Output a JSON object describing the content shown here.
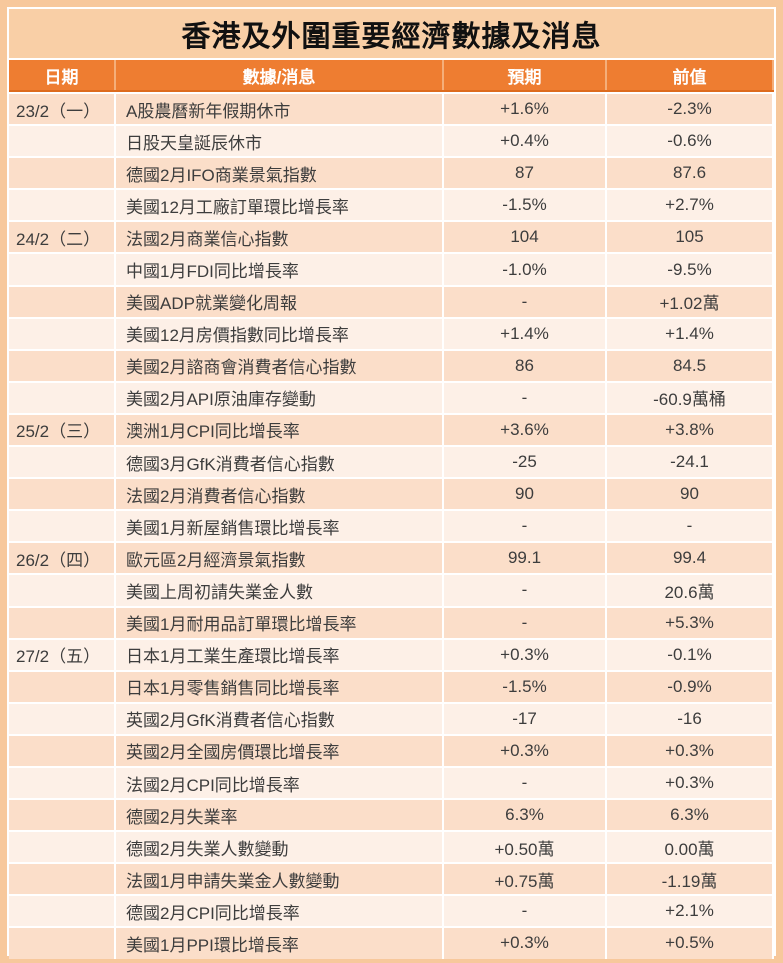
{
  "title": "香港及外圍重要經濟數據及消息",
  "colors": {
    "frame": "#F7C89C",
    "title_bg": "#F9CFA6",
    "header_bg": "#EE7D31",
    "header_gap": "#F5AE79",
    "header_line": "#DD6B1D",
    "row_dark": "#FBDEC9",
    "row_light": "#FDF0E7",
    "text": "#3D3D3D"
  },
  "chart_data": {
    "type": "table",
    "title": "香港及外圍重要經濟數據及消息",
    "columns": [
      {
        "key": "date",
        "label": "日期"
      },
      {
        "key": "item",
        "label": "數據/消息"
      },
      {
        "key": "expected",
        "label": "預期"
      },
      {
        "key": "previous",
        "label": "前值"
      }
    ],
    "rows": [
      {
        "date": "23/2（一）",
        "item": "A股農曆新年假期休市",
        "expected": "+1.6%",
        "previous": "-2.3%"
      },
      {
        "date": "",
        "item": "日股天皇誕辰休市",
        "expected": "+0.4%",
        "previous": "-0.6%"
      },
      {
        "date": "",
        "item": "德國2月IFO商業景氣指數",
        "expected": "87",
        "previous": "87.6"
      },
      {
        "date": "",
        "item": "美國12月工廠訂單環比增長率",
        "expected": "-1.5%",
        "previous": "+2.7%"
      },
      {
        "date": "24/2（二）",
        "item": "法國2月商業信心指數",
        "expected": "104",
        "previous": "105"
      },
      {
        "date": "",
        "item": "中國1月FDI同比增長率",
        "expected": "-1.0%",
        "previous": "-9.5%"
      },
      {
        "date": "",
        "item": "美國ADP就業變化周報",
        "expected": "-",
        "previous": "+1.02萬"
      },
      {
        "date": "",
        "item": "美國12月房價指數同比增長率",
        "expected": "+1.4%",
        "previous": "+1.4%"
      },
      {
        "date": "",
        "item": "美國2月諮商會消費者信心指數",
        "expected": "86",
        "previous": "84.5"
      },
      {
        "date": "",
        "item": "美國2月API原油庫存變動",
        "expected": "-",
        "previous": "-60.9萬桶"
      },
      {
        "date": "25/2（三）",
        "item": "澳洲1月CPI同比增長率",
        "expected": "+3.6%",
        "previous": "+3.8%"
      },
      {
        "date": "",
        "item": "德國3月GfK消費者信心指數",
        "expected": "-25",
        "previous": "-24.1"
      },
      {
        "date": "",
        "item": "法國2月消費者信心指數",
        "expected": "90",
        "previous": "90"
      },
      {
        "date": "",
        "item": "美國1月新屋銷售環比增長率",
        "expected": "-",
        "previous": "-"
      },
      {
        "date": "26/2（四）",
        "item": "歐元區2月經濟景氣指數",
        "expected": "99.1",
        "previous": "99.4"
      },
      {
        "date": "",
        "item": "美國上周初請失業金人數",
        "expected": "-",
        "previous": "20.6萬"
      },
      {
        "date": "",
        "item": "美國1月耐用品訂單環比增長率",
        "expected": "-",
        "previous": "+5.3%"
      },
      {
        "date": "27/2（五）",
        "item": "日本1月工業生產環比增長率",
        "expected": "+0.3%",
        "previous": "-0.1%"
      },
      {
        "date": "",
        "item": "日本1月零售銷售同比增長率",
        "expected": "-1.5%",
        "previous": "-0.9%"
      },
      {
        "date": "",
        "item": "英國2月GfK消費者信心指數",
        "expected": "-17",
        "previous": "-16"
      },
      {
        "date": "",
        "item": "英國2月全國房價環比增長率",
        "expected": "+0.3%",
        "previous": "+0.3%"
      },
      {
        "date": "",
        "item": "法國2月CPI同比增長率",
        "expected": "-",
        "previous": "+0.3%"
      },
      {
        "date": "",
        "item": "德國2月失業率",
        "expected": "6.3%",
        "previous": "6.3%"
      },
      {
        "date": "",
        "item": "德國2月失業人數變動",
        "expected": "+0.50萬",
        "previous": "0.00萬"
      },
      {
        "date": "",
        "item": "法國1月申請失業金人數變動",
        "expected": "+0.75萬",
        "previous": "-1.19萬"
      },
      {
        "date": "",
        "item": "德國2月CPI同比增長率",
        "expected": "-",
        "previous": "+2.1%"
      },
      {
        "date": "",
        "item": "美國1月PPI環比增長率",
        "expected": "+0.3%",
        "previous": "+0.5%"
      }
    ]
  }
}
